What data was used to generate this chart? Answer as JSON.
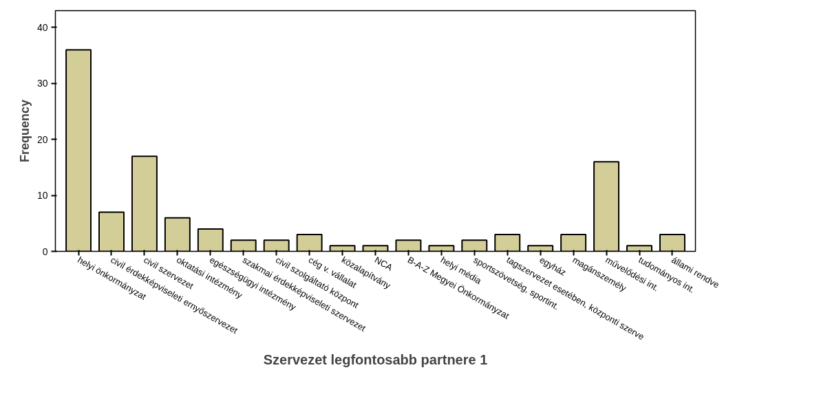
{
  "chart_data": {
    "type": "bar",
    "xlabel": "Szervezet legfontosabb partnere 1",
    "ylabel": "Frequency",
    "categories": [
      "helyi önkormányzat",
      "civil érdekképviseleti ernyőszervezet",
      "civil szervezet",
      "oktatási intézmény",
      "egészségügyi intézmény",
      "szakmai érdekképviseleti szervezet",
      "civil szolgáltató központ",
      "cég v. vállalat",
      "közalapítvány",
      "NCA",
      "B-A-Z Megyei Önkormányzat",
      "helyi média",
      "sportszövetség, sportint.",
      "tagszervezet esetében, központi szerve",
      "egyház",
      "magánszemély",
      "művelődési int.",
      "tudományos int.",
      "állami rendve"
    ],
    "values": [
      36,
      7,
      17,
      6,
      4,
      2,
      2,
      3,
      1,
      1,
      2,
      1,
      2,
      3,
      1,
      3,
      16,
      1,
      3
    ],
    "color": "#d3ce98",
    "ylim": [
      0,
      43
    ],
    "yticks": [
      0,
      10,
      20,
      30,
      40
    ],
    "grid": false
  }
}
